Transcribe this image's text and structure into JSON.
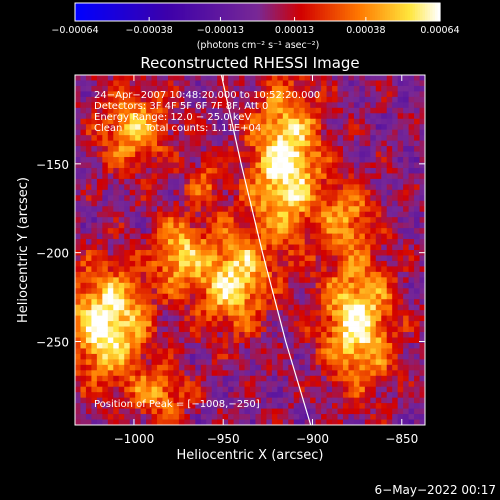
{
  "chart_data": {
    "type": "heatmap",
    "title": "Reconstructed RHESSI Image",
    "xlabel": "Heliocentric X (arcsec)",
    "ylabel": "Heliocentric Y (arcsec)",
    "xlim": [
      -1033,
      -837
    ],
    "ylim": [
      -297,
      -100
    ],
    "x_ticks": [
      -1000,
      -950,
      -900,
      -850
    ],
    "y_ticks": [
      -250,
      -200,
      -150
    ],
    "x_tick_labels": [
      "−1000",
      "−950",
      "−900",
      "−850"
    ],
    "y_tick_labels": [
      "−250",
      "−200",
      "−150"
    ],
    "colorbar": {
      "min": -0.00064,
      "max": 0.00064,
      "ticks": [
        -0.00064,
        -0.00038,
        -0.00013,
        0.00013,
        0.00038,
        0.00064
      ],
      "tick_labels": [
        "−0.00064",
        "−0.00038",
        "−0.00013",
        "0.00013",
        "0.00038",
        "0.00064"
      ],
      "unit_label": "(photons cm⁻² s⁻¹ asec⁻²)"
    },
    "annotations": {
      "time": "24−Apr−2007 10:48:20.000 to 10:52:20.000",
      "detectors": "Detectors: 3F 4F 5F 6F 7F 8F, Att 0",
      "energy": "Energy Range: 12.0 − 25.0 keV",
      "method": "Clean",
      "counts": "Total counts: 1.11E+04",
      "peak": "Position of Peak = [−1008,−250]"
    },
    "limb_curve": [
      [
        -951,
        -100
      ],
      [
        -940,
        -150
      ],
      [
        -928,
        -200
      ],
      [
        -915,
        -250
      ],
      [
        -901,
        -297
      ]
    ],
    "bright_regions": [
      {
        "x": -945,
        "y": -215,
        "sx": 14,
        "sy": 20,
        "value": 0.00055
      },
      {
        "x": -915,
        "y": -150,
        "sx": 14,
        "sy": 30,
        "value": 0.00064
      },
      {
        "x": -975,
        "y": -200,
        "sx": 10,
        "sy": 14,
        "value": 0.00045
      },
      {
        "x": -1015,
        "y": -240,
        "sx": 16,
        "sy": 22,
        "value": 0.00064
      },
      {
        "x": -1000,
        "y": -130,
        "sx": 14,
        "sy": 16,
        "value": 0.00045
      },
      {
        "x": -875,
        "y": -240,
        "sx": 14,
        "sy": 25,
        "value": 0.0006
      },
      {
        "x": -880,
        "y": -180,
        "sx": 10,
        "sy": 14,
        "value": 0.00035
      },
      {
        "x": -985,
        "y": -280,
        "sx": 12,
        "sy": 10,
        "value": 0.00035
      },
      {
        "x": -960,
        "y": -160,
        "sx": 8,
        "sy": 10,
        "value": 0.00025
      }
    ]
  },
  "footer": {
    "date": "6−May−2022 00:17"
  }
}
